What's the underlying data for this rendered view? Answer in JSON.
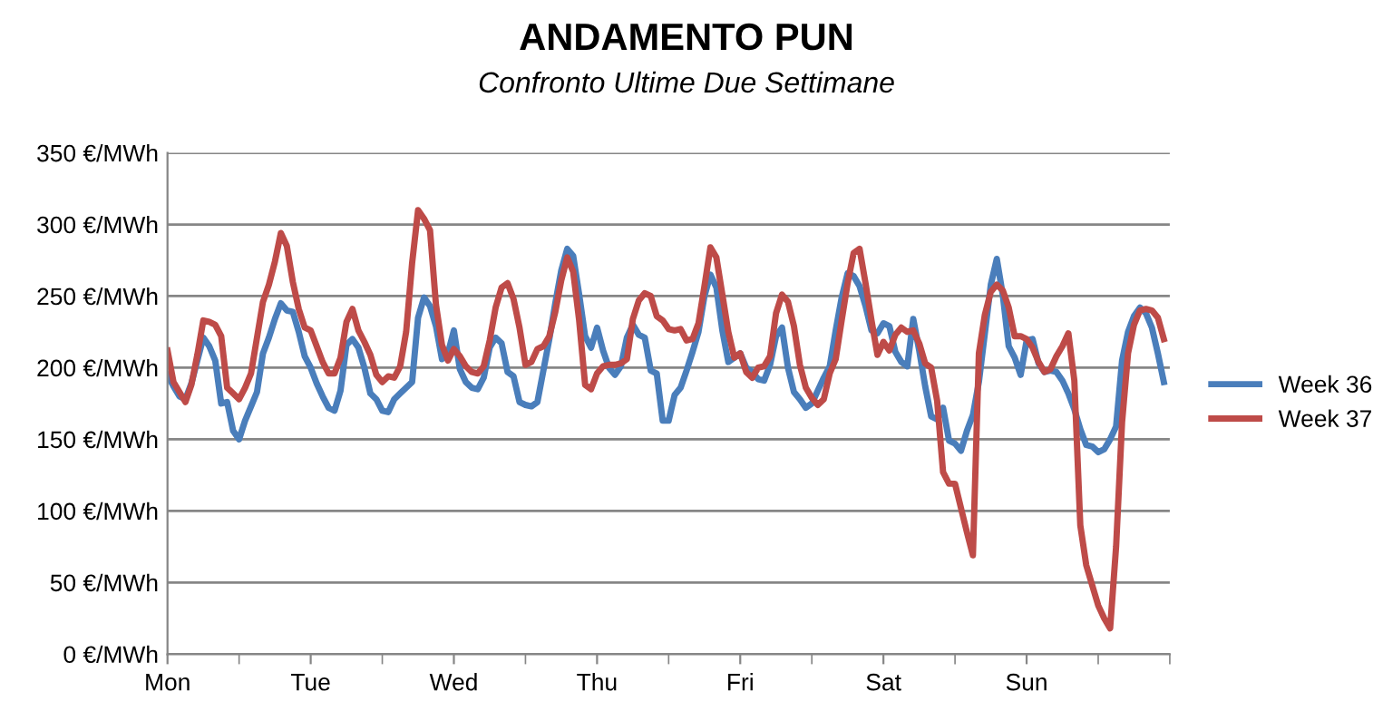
{
  "chart_data": {
    "type": "line",
    "title": "ANDAMENTO PUN",
    "subtitle": "Confronto Ultime Due Settimane",
    "categories": [
      "Mon",
      null,
      null,
      null,
      null,
      null,
      null,
      null,
      null,
      null,
      null,
      null,
      null,
      null,
      null,
      null,
      null,
      null,
      null,
      null,
      null,
      null,
      null,
      null,
      "Tue",
      null,
      null,
      null,
      null,
      null,
      null,
      null,
      null,
      null,
      null,
      null,
      null,
      null,
      null,
      null,
      null,
      null,
      null,
      null,
      null,
      null,
      null,
      null,
      "Wed",
      null,
      null,
      null,
      null,
      null,
      null,
      null,
      null,
      null,
      null,
      null,
      null,
      null,
      null,
      null,
      null,
      null,
      null,
      null,
      null,
      null,
      null,
      null,
      "Thu",
      null,
      null,
      null,
      null,
      null,
      null,
      null,
      null,
      null,
      null,
      null,
      null,
      null,
      null,
      null,
      null,
      null,
      null,
      null,
      null,
      null,
      null,
      null,
      "Fri",
      null,
      null,
      null,
      null,
      null,
      null,
      null,
      null,
      null,
      null,
      null,
      null,
      null,
      null,
      null,
      null,
      null,
      null,
      null,
      null,
      null,
      null,
      null,
      "Sat",
      null,
      null,
      null,
      null,
      null,
      null,
      null,
      null,
      null,
      null,
      null,
      null,
      null,
      null,
      null,
      null,
      null,
      null,
      null,
      null,
      null,
      null,
      null,
      "Sun",
      null,
      null,
      null,
      null,
      null,
      null,
      null,
      null,
      null,
      null,
      null,
      null,
      null,
      null,
      null,
      null,
      null,
      null,
      null,
      null,
      null,
      null,
      null
    ],
    "ylim": [
      0,
      350
    ],
    "yticks": [
      {
        "value": 0,
        "label": "0 €/MWh"
      },
      {
        "value": 50,
        "label": "50 €/MWh"
      },
      {
        "value": 100,
        "label": "100 €/MWh"
      },
      {
        "value": 150,
        "label": "150 €/MWh"
      },
      {
        "value": 200,
        "label": "200 €/MWh"
      },
      {
        "value": 250,
        "label": "250 €/MWh"
      },
      {
        "value": 300,
        "label": "300 €/MWh"
      },
      {
        "value": 350,
        "label": "350 €/MWh"
      }
    ],
    "grid": "y",
    "legend": "right",
    "marker": "none",
    "line_style": "solid",
    "series": [
      {
        "name": "Week 36",
        "color": "#4a7ebb",
        "values": [
          195,
          187,
          180,
          178,
          189,
          205,
          221,
          215,
          205,
          175,
          176,
          156,
          150,
          163,
          173,
          183,
          210,
          221,
          234,
          245,
          240,
          239,
          225,
          208,
          200,
          189,
          180,
          172,
          170,
          184,
          216,
          220,
          214,
          200,
          182,
          178,
          170,
          169,
          178,
          182,
          186,
          190,
          235,
          249,
          243,
          229,
          206,
          210,
          226,
          199,
          190,
          186,
          185,
          193,
          214,
          221,
          217,
          197,
          194,
          176,
          174,
          173,
          176,
          198,
          220,
          245,
          268,
          283,
          278,
          251,
          222,
          214,
          228,
          212,
          200,
          195,
          201,
          221,
          230,
          223,
          221,
          198,
          196,
          163,
          163,
          181,
          186,
          198,
          211,
          225,
          250,
          265,
          256,
          226,
          204,
          207,
          210,
          200,
          197,
          192,
          191,
          202,
          222,
          228,
          200,
          183,
          178,
          172,
          175,
          184,
          193,
          201,
          226,
          249,
          266,
          264,
          257,
          243,
          226,
          224,
          231,
          229,
          211,
          204,
          201,
          234,
          212,
          187,
          166,
          164,
          172,
          149,
          147,
          142,
          156,
          167,
          190,
          224,
          258,
          276,
          251,
          215,
          207,
          195,
          219,
          220,
          203,
          197,
          198,
          197,
          191,
          182,
          171,
          157,
          146,
          145,
          141,
          143,
          150,
          159,
          205,
          225,
          236,
          242,
          238,
          228,
          210,
          190
        ]
      },
      {
        "name": "Week 37",
        "color": "#be4b48",
        "values": [
          212,
          190,
          183,
          176,
          188,
          209,
          233,
          232,
          230,
          222,
          186,
          182,
          178,
          186,
          196,
          221,
          246,
          258,
          274,
          294,
          285,
          260,
          241,
          228,
          226,
          215,
          204,
          196,
          196,
          207,
          232,
          241,
          226,
          218,
          209,
          195,
          190,
          194,
          193,
          201,
          225,
          273,
          310,
          304,
          296,
          244,
          216,
          205,
          213,
          208,
          201,
          197,
          196,
          201,
          219,
          242,
          256,
          259,
          248,
          228,
          202,
          204,
          213,
          215,
          222,
          239,
          261,
          277,
          267,
          233,
          188,
          185,
          196,
          201,
          202,
          202,
          203,
          206,
          234,
          247,
          252,
          250,
          236,
          233,
          227,
          226,
          227,
          219,
          220,
          231,
          257,
          284,
          277,
          251,
          225,
          207,
          210,
          197,
          193,
          200,
          201,
          208,
          238,
          251,
          246,
          229,
          202,
          186,
          179,
          174,
          178,
          196,
          206,
          233,
          259,
          280,
          283,
          259,
          233,
          209,
          218,
          212,
          223,
          228,
          225,
          226,
          217,
          203,
          200,
          177,
          127,
          119,
          119,
          102,
          85,
          69,
          210,
          237,
          253,
          258,
          254,
          242,
          222,
          222,
          220,
          214,
          204,
          197,
          199,
          208,
          215,
          224,
          191,
          90,
          62,
          48,
          34,
          25,
          18,
          75,
          162,
          210,
          230,
          240,
          241,
          240,
          235,
          220
        ]
      }
    ]
  }
}
